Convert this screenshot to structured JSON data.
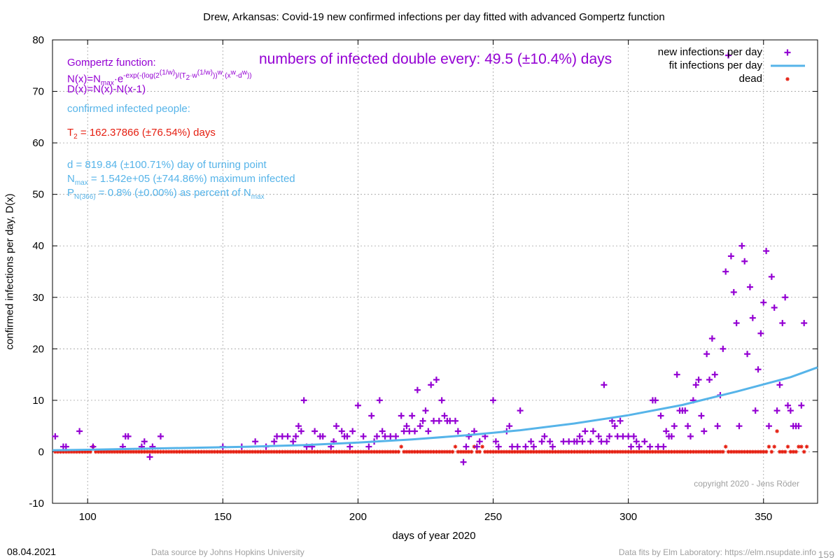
{
  "chart_data": {
    "type": "scatter",
    "title": "Drew,  Arkansas: Covid-19 new confirmed infections per day fitted with advanced Gompertz function",
    "xlabel": "days of year 2020",
    "ylabel": "confirmed infections per day, D(x)",
    "xlim": [
      87,
      370
    ],
    "ylim": [
      -10,
      80
    ],
    "x_ticks": [
      100,
      150,
      200,
      250,
      300,
      350
    ],
    "y_ticks": [
      -10,
      0,
      10,
      20,
      30,
      40,
      50,
      60,
      70,
      80
    ],
    "grid": true,
    "legend_position": "top-right",
    "series": [
      {
        "name": "new infections per day",
        "marker": "plus",
        "color": "#9400d3",
        "points": [
          [
            88,
            3
          ],
          [
            91,
            1
          ],
          [
            92,
            1
          ],
          [
            97,
            4
          ],
          [
            102,
            1
          ],
          [
            113,
            1
          ],
          [
            114,
            3
          ],
          [
            115,
            3
          ],
          [
            120,
            1
          ],
          [
            121,
            2
          ],
          [
            123,
            -1
          ],
          [
            124,
            1
          ],
          [
            127,
            3
          ],
          [
            150,
            1
          ],
          [
            157,
            1
          ],
          [
            162,
            2
          ],
          [
            166,
            1
          ],
          [
            169,
            2
          ],
          [
            170,
            3
          ],
          [
            172,
            3
          ],
          [
            174,
            3
          ],
          [
            176,
            2
          ],
          [
            177,
            3
          ],
          [
            178,
            5
          ],
          [
            179,
            4
          ],
          [
            180,
            10
          ],
          [
            181,
            1
          ],
          [
            183,
            1
          ],
          [
            184,
            4
          ],
          [
            186,
            3
          ],
          [
            187,
            3
          ],
          [
            190,
            1
          ],
          [
            191,
            2
          ],
          [
            192,
            5
          ],
          [
            194,
            4
          ],
          [
            195,
            3
          ],
          [
            196,
            3
          ],
          [
            197,
            1
          ],
          [
            198,
            4
          ],
          [
            200,
            9
          ],
          [
            202,
            3
          ],
          [
            204,
            1
          ],
          [
            205,
            7
          ],
          [
            206,
            2
          ],
          [
            207,
            3
          ],
          [
            208,
            10
          ],
          [
            209,
            4
          ],
          [
            210,
            3
          ],
          [
            212,
            3
          ],
          [
            214,
            3
          ],
          [
            216,
            7
          ],
          [
            217,
            4
          ],
          [
            218,
            5
          ],
          [
            219,
            4
          ],
          [
            220,
            7
          ],
          [
            221,
            4
          ],
          [
            222,
            12
          ],
          [
            223,
            5
          ],
          [
            224,
            6
          ],
          [
            225,
            8
          ],
          [
            226,
            4
          ],
          [
            227,
            13
          ],
          [
            228,
            6
          ],
          [
            229,
            14
          ],
          [
            230,
            6
          ],
          [
            231,
            10
          ],
          [
            232,
            7
          ],
          [
            233,
            6
          ],
          [
            234,
            6
          ],
          [
            236,
            6
          ],
          [
            237,
            4
          ],
          [
            239,
            -2
          ],
          [
            240,
            1
          ],
          [
            241,
            3
          ],
          [
            243,
            4
          ],
          [
            244,
            1
          ],
          [
            245,
            2
          ],
          [
            247,
            3
          ],
          [
            250,
            10
          ],
          [
            251,
            2
          ],
          [
            252,
            1
          ],
          [
            255,
            4
          ],
          [
            256,
            5
          ],
          [
            257,
            1
          ],
          [
            259,
            1
          ],
          [
            260,
            8
          ],
          [
            262,
            1
          ],
          [
            264,
            2
          ],
          [
            265,
            1
          ],
          [
            268,
            2
          ],
          [
            269,
            3
          ],
          [
            271,
            2
          ],
          [
            272,
            1
          ],
          [
            276,
            2
          ],
          [
            278,
            2
          ],
          [
            280,
            2
          ],
          [
            281,
            2
          ],
          [
            282,
            3
          ],
          [
            283,
            2
          ],
          [
            284,
            4
          ],
          [
            286,
            2
          ],
          [
            287,
            4
          ],
          [
            289,
            3
          ],
          [
            290,
            2
          ],
          [
            291,
            13
          ],
          [
            292,
            2
          ],
          [
            293,
            3
          ],
          [
            294,
            6
          ],
          [
            295,
            5
          ],
          [
            296,
            3
          ],
          [
            297,
            6
          ],
          [
            298,
            3
          ],
          [
            300,
            3
          ],
          [
            301,
            1
          ],
          [
            302,
            3
          ],
          [
            303,
            2
          ],
          [
            304,
            1
          ],
          [
            306,
            2
          ],
          [
            308,
            1
          ],
          [
            309,
            10
          ],
          [
            310,
            10
          ],
          [
            311,
            1
          ],
          [
            312,
            7
          ],
          [
            313,
            1
          ],
          [
            314,
            4
          ],
          [
            315,
            3
          ],
          [
            316,
            3
          ],
          [
            317,
            5
          ],
          [
            318,
            15
          ],
          [
            319,
            8
          ],
          [
            320,
            8
          ],
          [
            321,
            8
          ],
          [
            322,
            5
          ],
          [
            323,
            3
          ],
          [
            324,
            10
          ],
          [
            325,
            13
          ],
          [
            326,
            14
          ],
          [
            327,
            7
          ],
          [
            328,
            4
          ],
          [
            329,
            19
          ],
          [
            330,
            14
          ],
          [
            331,
            22
          ],
          [
            332,
            15
          ],
          [
            333,
            5
          ],
          [
            334,
            11
          ],
          [
            335,
            20
          ],
          [
            336,
            35
          ],
          [
            337,
            77
          ],
          [
            338,
            38
          ],
          [
            339,
            31
          ],
          [
            340,
            25
          ],
          [
            341,
            5
          ],
          [
            342,
            40
          ],
          [
            343,
            37
          ],
          [
            344,
            19
          ],
          [
            345,
            32
          ],
          [
            346,
            26
          ],
          [
            347,
            8
          ],
          [
            348,
            16
          ],
          [
            349,
            23
          ],
          [
            350,
            29
          ],
          [
            351,
            39
          ],
          [
            352,
            5
          ],
          [
            353,
            34
          ],
          [
            354,
            28
          ],
          [
            355,
            8
          ],
          [
            356,
            13
          ],
          [
            357,
            25
          ],
          [
            358,
            30
          ],
          [
            359,
            9
          ],
          [
            360,
            8
          ],
          [
            361,
            5
          ],
          [
            362,
            5
          ],
          [
            363,
            5
          ],
          [
            364,
            9
          ],
          [
            365,
            25
          ]
        ]
      },
      {
        "name": "fit infections per day",
        "line": true,
        "color": "#56b4e9",
        "points": [
          [
            87,
            0.3
          ],
          [
            100,
            0.4
          ],
          [
            120,
            0.6
          ],
          [
            140,
            0.8
          ],
          [
            160,
            1.0
          ],
          [
            180,
            1.3
          ],
          [
            200,
            1.8
          ],
          [
            220,
            2.4
          ],
          [
            240,
            3.2
          ],
          [
            260,
            4.2
          ],
          [
            280,
            5.5
          ],
          [
            300,
            7.1
          ],
          [
            320,
            9.1
          ],
          [
            340,
            11.7
          ],
          [
            360,
            14.5
          ],
          [
            370,
            16.4
          ]
        ]
      },
      {
        "name": "dead",
        "marker": "star",
        "color": "#e51e10",
        "base_range": [
          88,
          366
        ],
        "base_value": 0,
        "nonzero_points": [
          [
            102,
            1
          ],
          [
            216,
            1
          ],
          [
            236,
            1
          ],
          [
            243,
            1
          ],
          [
            246,
            1
          ],
          [
            336,
            1
          ],
          [
            352,
            1
          ],
          [
            354,
            1
          ],
          [
            355,
            4
          ],
          [
            359,
            1
          ],
          [
            363,
            1
          ],
          [
            364,
            1
          ],
          [
            366,
            1
          ]
        ]
      }
    ]
  },
  "annotations": {
    "gompertz_heading": "Gompertz function:",
    "formula_n_a": "N(x)=N",
    "formula_n_sub": "max",
    "formula_n_b": "·e",
    "formula_n_sup_a": "-exp(-(log(2",
    "formula_n_sup_b": "(1/w)",
    "formula_n_sup_c": ")/(T",
    "formula_n_sup_d": "2",
    "formula_n_sup_e": "·w",
    "formula_n_sup_f": "(1/w)",
    "formula_n_sup_g": "))",
    "formula_n_sup_h": "w",
    "formula_n_sup_i": "·(x",
    "formula_n_sup_j": "w",
    "formula_n_sup_k": "-d",
    "formula_n_sup_l": "w",
    "formula_n_sup_m": "))",
    "formula_d": "D(x)=N(x)-N(x-1)",
    "doubling": "numbers of infected double every: 49.5 (±10.4%) days",
    "confirmed_label": "confirmed infected people:",
    "t2_a": "T",
    "t2_sub": "2",
    "t2_b": " = 162.37866 (±76.54%) days",
    "d_line": "d = 819.84 (±100.71%) day of turning point",
    "nmax_a": "N",
    "nmax_sub": "max",
    "nmax_b": " = 1.542e+05 (±744.86%) maximum infected",
    "p_a": "P",
    "p_sub": "N(366)",
    "p_b": " = 0.8% (±0.00%) as percent of N",
    "p_sub2": "max",
    "copyright": "copyright 2020 - Jens Röder"
  },
  "footer": {
    "date": "08.04.2021",
    "source": "Data source by Johns Hopkins University",
    "fits": "Data fits by Elm Laboratory: https://elm.nsupdate.info",
    "page_number": "159"
  }
}
